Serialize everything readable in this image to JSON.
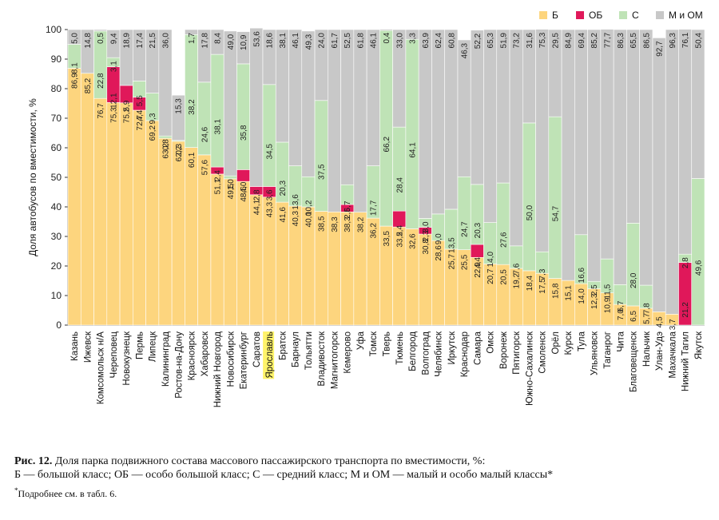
{
  "chart_data": {
    "type": "bar",
    "stacked": true,
    "ylabel": "Доля автобусов по вместимости, %",
    "ylim": [
      0,
      100
    ],
    "yticks": [
      0,
      10,
      20,
      30,
      40,
      50,
      60,
      70,
      80,
      90,
      100
    ],
    "legend_position": "top-right",
    "highlight_category": "Ярославль",
    "categories": [
      "Казань",
      "Ижевск",
      "Комсомольск н/А",
      "Череповец",
      "Новокузнецк",
      "Пермь",
      "Липецк",
      "Калининград",
      "Ростов-на-Дону",
      "Красноярск",
      "Хабаровск",
      "Нижний Новгород",
      "Новосибирск",
      "Екатеринбург",
      "Саратов",
      "Ярославль",
      "Братск",
      "Барнаул",
      "Тольятти",
      "Владивосток",
      "Магнитогорск",
      "Кемерово",
      "Уфа",
      "Томск",
      "Тверь",
      "Тюмень",
      "Белгород",
      "Волгоград",
      "Челябинск",
      "Иркутск",
      "Краснодар",
      "Самара",
      "Омск",
      "Воронеж",
      "Пятигорск",
      "Южно-Сахалинск",
      "Смоленск",
      "Орёл",
      "Курск",
      "Тула",
      "Ульяновск",
      "Таганрог",
      "Чита",
      "Благовещенск",
      "Нальчик",
      "Улан-Удэ",
      "Махачкала",
      "Нижний Тагил",
      "Якутск"
    ],
    "series": [
      {
        "name": "Б",
        "color": "#fdd57e",
        "values": [
          86.9,
          85.2,
          76.7,
          75.3,
          75.2,
          72.7,
          69.2,
          63.2,
          62.2,
          60.1,
          57.6,
          51.1,
          49.5,
          48.6,
          44.1,
          43.3,
          41.6,
          40.3,
          40.0,
          38.5,
          38.3,
          38.3,
          38.2,
          36.2,
          33.5,
          33.2,
          32.6,
          30.8,
          28.6,
          25.7,
          25.5,
          22.9,
          20.7,
          20.5,
          19.2,
          18.4,
          17.5,
          15.8,
          15.1,
          14.0,
          12.3,
          10.9,
          7.0,
          6.5,
          5.7,
          4.5,
          3.7,
          0,
          0
        ]
      },
      {
        "name": "ОБ",
        "color": "#e0185a",
        "values": [
          0,
          0,
          0,
          12.1,
          5.9,
          4.4,
          0,
          0,
          0,
          0,
          0,
          2.4,
          0,
          4.0,
          2.8,
          3.6,
          0,
          0,
          0,
          0,
          0,
          2.5,
          0,
          0,
          0,
          5.4,
          0,
          2.3,
          0,
          0,
          0,
          4.4,
          0,
          0,
          0,
          0,
          0,
          0,
          0,
          0,
          0,
          0,
          0,
          0,
          0,
          0,
          0,
          21.2,
          0
        ]
      },
      {
        "name": "С",
        "color": "#bfe3b6",
        "values": [
          8.1,
          0,
          22.8,
          3.1,
          0,
          5.5,
          9.3,
          0.8,
          0.3,
          38.2,
          24.6,
          38.1,
          1.0,
          35.8,
          0,
          34.5,
          20.3,
          13.6,
          10.2,
          37.5,
          0,
          6.7,
          0,
          17.7,
          66.2,
          28.4,
          64.1,
          3.0,
          9.0,
          13.5,
          24.7,
          20.3,
          14.0,
          27.6,
          7.6,
          50.0,
          7.3,
          54.7,
          0,
          16.6,
          2.5,
          11.5,
          6.7,
          28.0,
          7.8,
          0,
          0,
          2.8,
          49.6
        ]
      },
      {
        "name": "М и ОМ",
        "color": "#c8c8c8",
        "values": [
          5.0,
          14.8,
          0.5,
          9.4,
          18.9,
          17.4,
          21.5,
          36.0,
          15.3,
          1.7,
          17.8,
          8.4,
          49.0,
          10.9,
          53.6,
          18.6,
          38.1,
          46.1,
          49.3,
          24.0,
          61.7,
          52.5,
          61.8,
          46.1,
          0.4,
          33.0,
          3.3,
          63.9,
          62.4,
          60.8,
          46.3,
          52.2,
          65.3,
          51.9,
          73.2,
          31.6,
          75.3,
          29.5,
          84.9,
          69.4,
          85.2,
          77.7,
          86.3,
          65.5,
          86.5,
          92.7,
          96.3,
          76.1,
          50.4
        ]
      }
    ],
    "value_labels": [
      [
        [
          "86,9"
        ],
        [
          "85,2"
        ],
        [
          "76,7"
        ],
        [
          "75,3"
        ],
        [
          "75,2"
        ],
        [
          "72,7"
        ],
        [
          "69,2"
        ],
        [
          "63,2"
        ],
        [
          "62,2"
        ],
        [
          "60,1"
        ],
        [
          "57,6"
        ],
        [
          "51,1"
        ],
        [
          "49,5"
        ],
        [
          "48,6"
        ],
        [
          "44,1"
        ],
        [
          "43,3"
        ],
        [
          "41,6"
        ],
        [
          "40,3"
        ],
        [
          "40,0"
        ],
        [
          "38,5"
        ],
        [
          "38,3"
        ],
        [
          "38,3"
        ],
        [
          "38,2"
        ],
        [
          "36,2"
        ],
        [
          "33,5"
        ],
        [
          "33,2"
        ],
        [
          "32,6"
        ],
        [
          "30,8"
        ],
        [
          "28,6"
        ],
        [
          "25,7"
        ],
        [
          "25,5"
        ],
        [
          "22,9"
        ],
        [
          "20,7"
        ],
        [
          "20,5"
        ],
        [
          "19,2"
        ],
        [
          "18,4"
        ],
        [
          "17,5"
        ],
        [
          "15,8"
        ],
        [
          "15,1"
        ],
        [
          "14,0"
        ],
        [
          "12,3"
        ],
        [
          "10,9"
        ],
        [
          "7,0"
        ],
        [
          "6,5"
        ],
        [
          "5,7"
        ],
        [
          "4,5"
        ],
        [
          "3,7"
        ],
        [
          ""
        ],
        [
          ""
        ]
      ]
    ]
  },
  "legend": [
    {
      "label": "Б",
      "color": "#fdd57e"
    },
    {
      "label": "ОБ",
      "color": "#e0185a"
    },
    {
      "label": "С",
      "color": "#bfe3b6"
    },
    {
      "label": "М и ОМ",
      "color": "#c8c8c8"
    }
  ],
  "labels_text": {
    "Б": [
      "86,9",
      "85,2",
      "76,7",
      "75,3",
      "75,2",
      "72,7",
      "69,2",
      "63,2",
      "62,2",
      "60,1",
      "57,6",
      "51,1",
      "49,5",
      "48,6",
      "44,1",
      "43,3",
      "41,6",
      "40,3",
      "40,0",
      "38,5",
      "38,3",
      "38,3",
      "38,2",
      "36,2",
      "33,5",
      "33,2",
      "32,6",
      "30,8",
      "28,6",
      "25,7",
      "25,5",
      "22,9",
      "20,7",
      "20,5",
      "19,2",
      "18,4",
      "17,5",
      "15,8",
      "15,1",
      "14,0",
      "12,3",
      "10,9",
      "7,0",
      "6,5",
      "5,7",
      "4,5",
      "3,7",
      "",
      ""
    ],
    "ОБ": [
      "",
      "",
      "",
      "12,1",
      "5,9",
      "4,4",
      "",
      "",
      "",
      "",
      "",
      "2,4",
      "",
      "4,0",
      "2,8",
      "3,6",
      "",
      "",
      "",
      "",
      "",
      "2,5",
      "",
      "",
      "",
      "5,4",
      "",
      "2,3",
      "",
      "",
      "",
      "4,4",
      "",
      "",
      "",
      "",
      "",
      "",
      "",
      "",
      "",
      "",
      "",
      "",
      "",
      "",
      "",
      "21,2",
      ""
    ],
    "С": [
      "8,1",
      "",
      "22,8",
      "3,1",
      "",
      "5,5",
      "9,3",
      "0,8",
      "0,3",
      "38,2",
      "24,6",
      "38,1",
      "1,0",
      "35,8",
      "",
      "34,5",
      "20,3",
      "13,6",
      "10,2",
      "37,5",
      "",
      "6,7",
      "",
      "17,7",
      "66,2",
      "28,4",
      "64,1",
      "3,0",
      "9,0",
      "13,5",
      "24,7",
      "20,3",
      "14,0",
      "27,6",
      "7,6",
      "50,0",
      "7,3",
      "54,7",
      "",
      "16,6",
      "2,5",
      "11,5",
      "6,7",
      "28,0",
      "7,8",
      "",
      "",
      "2,8",
      "49,6"
    ],
    "М и ОМ": [
      "5,0",
      "14,8",
      "0,5",
      "9,4",
      "18,9",
      "17,4",
      "21,5",
      "36,0",
      "15,3",
      "1,7",
      "17,8",
      "8,4",
      "49,0",
      "10,9",
      "53,6",
      "18,6",
      "38,1",
      "46,1",
      "49,3",
      "24,0",
      "61,7",
      "52,5",
      "61,8",
      "46,1",
      "0,4",
      "33,0",
      "3,3",
      "63,9",
      "62,4",
      "60,8",
      "46,3",
      "52,2",
      "65,3",
      "51,9",
      "73,2",
      "31,6",
      "75,3",
      "29,5",
      "84,9",
      "69,4",
      "85,2",
      "77,7",
      "86,3",
      "65,5",
      "86,5",
      "92,7",
      "96,3",
      "76,1",
      "50,4"
    ]
  },
  "caption": {
    "fig_label": "Рис. 12.",
    "line1": "Доля парка подвижного состава массового пассажирского транспорта по вместимости, %:",
    "line2": "Б — большой класс; ОБ — особо большой класс; С — средний класс; М и ОМ — малый и особо малый классы*",
    "footnote_mark": "*",
    "footnote": "Подробнее см. в табл. 6."
  }
}
